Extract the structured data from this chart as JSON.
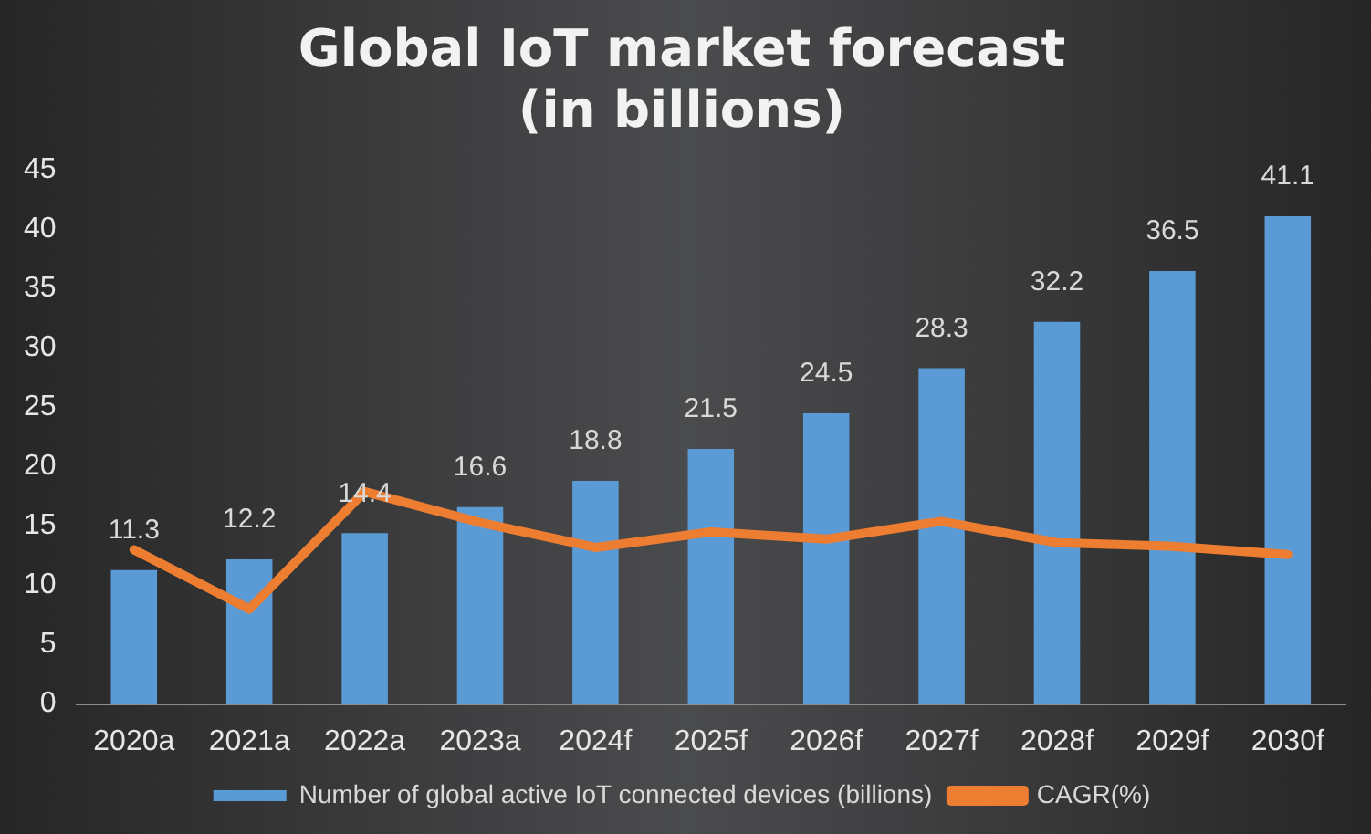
{
  "chart_data": {
    "type": "bar",
    "title": "Global IoT market forecast\n(in billions)",
    "categories": [
      "2020a",
      "2021a",
      "2022a",
      "2023a",
      "2024f",
      "2025f",
      "2026f",
      "2027f",
      "2028f",
      "2029f",
      "2030f"
    ],
    "series": [
      {
        "name": "Number of global active IoT connected devices (billions)",
        "color": "#5b9bd5",
        "values": [
          11.3,
          12.2,
          14.4,
          16.6,
          18.8,
          21.5,
          24.5,
          28.3,
          32.2,
          36.5,
          41.1
        ],
        "value_labels": [
          "11.3",
          "12.2",
          "14.4",
          "16.6",
          "18.8",
          "21.5",
          "24.5",
          "28.3",
          "32.2",
          "36.5",
          "41.1"
        ]
      },
      {
        "name": "CAGR(%)",
        "type": "line",
        "color": "#ed7d31",
        "values": [
          13.0,
          8.0,
          17.9,
          15.3,
          13.2,
          14.5,
          13.9,
          15.4,
          13.6,
          13.3,
          12.6
        ]
      }
    ],
    "ylim": [
      0,
      45
    ],
    "yticks": [
      0,
      5,
      10,
      15,
      20,
      25,
      30,
      35,
      40,
      45
    ],
    "grid": false,
    "legend": "bottom",
    "marker": "none"
  }
}
